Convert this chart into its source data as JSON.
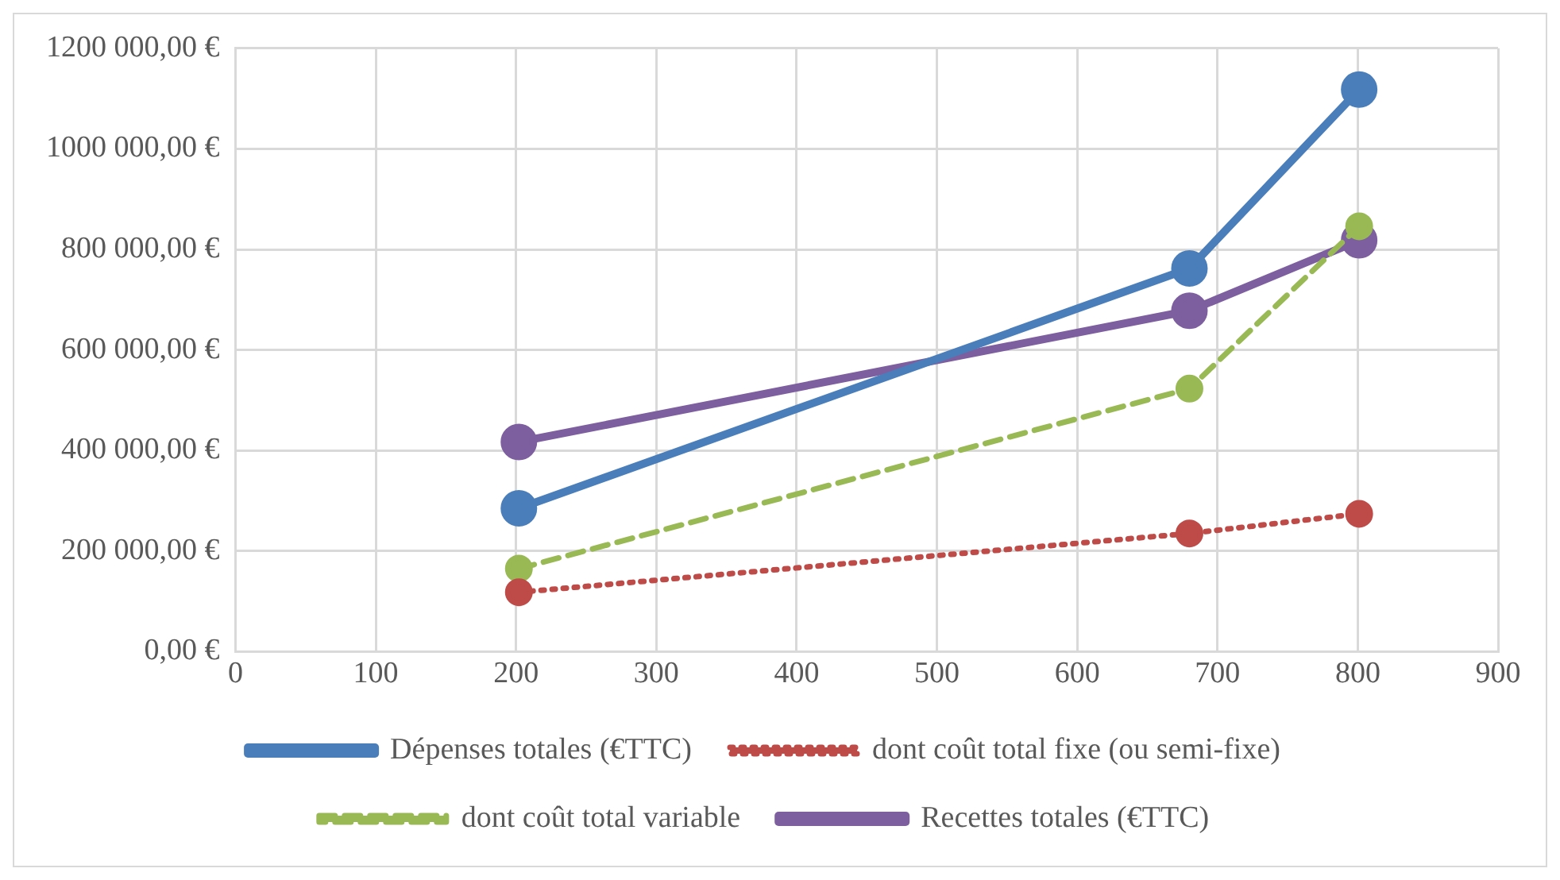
{
  "chart_data": {
    "type": "line",
    "x": [
      202,
      680,
      801
    ],
    "series": [
      {
        "name": "Dépenses totales (€TTC)",
        "color": "#4a7ebb",
        "values": [
          285000,
          762000,
          1118000
        ],
        "line_style": "solid",
        "marker": "circle"
      },
      {
        "name": "dont coût total fixe (ou semi-fixe)",
        "color": "#be4b48",
        "values": [
          118000,
          235000,
          274000
        ],
        "line_style": "dotted",
        "marker": "circle"
      },
      {
        "name": "dont coût total variable",
        "color": "#98b954",
        "values": [
          165000,
          523000,
          846000
        ],
        "line_style": "dashed",
        "marker": "circle"
      },
      {
        "name": "Recettes totales (€TTC)",
        "color": "#7d5fa0",
        "values": [
          417000,
          678000,
          818000
        ],
        "line_style": "solid",
        "marker": "circle"
      }
    ],
    "xlim": [
      0,
      900
    ],
    "xticks": [
      0,
      100,
      200,
      300,
      400,
      500,
      600,
      700,
      800,
      900
    ],
    "ylim": [
      0,
      1200000
    ],
    "yticks": [
      {
        "value": 0,
        "label": "0,00 €"
      },
      {
        "value": 200000,
        "label": "200 000,00 €"
      },
      {
        "value": 400000,
        "label": "400 000,00 €"
      },
      {
        "value": 600000,
        "label": "600 000,00 €"
      },
      {
        "value": 800000,
        "label": "800 000,00 €"
      },
      {
        "value": 1000000,
        "label": "1000 000,00 €"
      },
      {
        "value": 1200000,
        "label": "1200 000,00 €"
      }
    ],
    "grid": true,
    "legend": "bottom"
  }
}
